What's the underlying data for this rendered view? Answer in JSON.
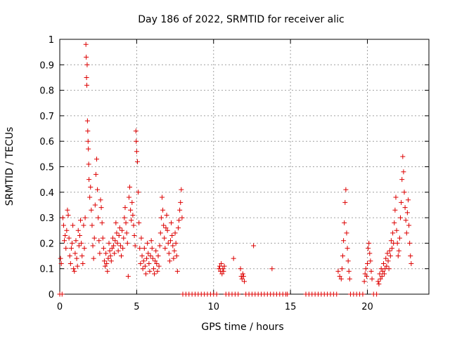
{
  "chart_data": {
    "type": "scatter",
    "title": "Day 186 of 2022, SRMTID for receiver alic",
    "xlabel": "GPS time / hours",
    "ylabel": "SRMTID / TECUs",
    "xlim": [
      0,
      24
    ],
    "ylim": [
      0,
      1
    ],
    "xticks": [
      0,
      5,
      10,
      15,
      20
    ],
    "xtick_labels": [
      "0",
      "5",
      "10",
      "15",
      "20"
    ],
    "yticks": [
      0,
      0.1,
      0.2,
      0.3,
      0.4,
      0.5,
      0.6,
      0.7,
      0.8,
      0.9,
      1
    ],
    "ytick_labels": [
      "0",
      "0.1",
      "0.2",
      "0.3",
      "0.4",
      "0.5",
      "0.6",
      "0.7",
      "0.8",
      "0.9",
      "1"
    ],
    "grid": true,
    "marker": "+",
    "color": "#dd0000",
    "series": [
      {
        "name": "SRMTID",
        "points": [
          [
            0.0,
            0.0
          ],
          [
            0.05,
            0.14
          ],
          [
            0.1,
            0.12
          ],
          [
            0.15,
            0.0
          ],
          [
            0.2,
            0.3
          ],
          [
            0.25,
            0.27
          ],
          [
            0.3,
            0.21
          ],
          [
            0.35,
            0.23
          ],
          [
            0.4,
            0.18
          ],
          [
            0.45,
            0.25
          ],
          [
            0.5,
            0.33
          ],
          [
            0.55,
            0.31
          ],
          [
            0.6,
            0.22
          ],
          [
            0.65,
            0.15
          ],
          [
            0.7,
            0.12
          ],
          [
            0.75,
            0.18
          ],
          [
            0.8,
            0.2
          ],
          [
            0.85,
            0.27
          ],
          [
            0.9,
            0.1
          ],
          [
            0.95,
            0.09
          ],
          [
            1.0,
            0.16
          ],
          [
            1.05,
            0.21
          ],
          [
            1.1,
            0.14
          ],
          [
            1.15,
            0.11
          ],
          [
            1.2,
            0.25
          ],
          [
            1.25,
            0.19
          ],
          [
            1.3,
            0.23
          ],
          [
            1.35,
            0.29
          ],
          [
            1.4,
            0.2
          ],
          [
            1.45,
            0.15
          ],
          [
            1.5,
            0.12
          ],
          [
            1.55,
            0.27
          ],
          [
            1.6,
            0.18
          ],
          [
            1.65,
            0.3
          ],
          [
            1.7,
            0.98
          ],
          [
            1.72,
            0.93
          ],
          [
            1.74,
            0.85
          ],
          [
            1.76,
            0.82
          ],
          [
            1.78,
            0.9
          ],
          [
            1.8,
            0.68
          ],
          [
            1.82,
            0.64
          ],
          [
            1.84,
            0.6
          ],
          [
            1.86,
            0.57
          ],
          [
            1.88,
            0.51
          ],
          [
            1.9,
            0.45
          ],
          [
            1.95,
            0.38
          ],
          [
            2.0,
            0.42
          ],
          [
            2.05,
            0.33
          ],
          [
            2.1,
            0.27
          ],
          [
            2.15,
            0.19
          ],
          [
            2.2,
            0.14
          ],
          [
            2.25,
            0.22
          ],
          [
            2.3,
            0.35
          ],
          [
            2.35,
            0.47
          ],
          [
            2.4,
            0.53
          ],
          [
            2.45,
            0.41
          ],
          [
            2.5,
            0.3
          ],
          [
            2.55,
            0.21
          ],
          [
            2.6,
            0.16
          ],
          [
            2.65,
            0.37
          ],
          [
            2.7,
            0.34
          ],
          [
            2.75,
            0.28
          ],
          [
            2.8,
            0.22
          ],
          [
            2.85,
            0.18
          ],
          [
            2.9,
            0.13
          ],
          [
            2.95,
            0.11
          ],
          [
            3.0,
            0.16
          ],
          [
            3.05,
            0.12
          ],
          [
            3.1,
            0.09
          ],
          [
            3.15,
            0.14
          ],
          [
            3.2,
            0.2
          ],
          [
            3.25,
            0.17
          ],
          [
            3.3,
            0.15
          ],
          [
            3.35,
            0.13
          ],
          [
            3.4,
            0.18
          ],
          [
            3.45,
            0.22
          ],
          [
            3.5,
            0.19
          ],
          [
            3.55,
            0.16
          ],
          [
            3.6,
            0.21
          ],
          [
            3.65,
            0.28
          ],
          [
            3.7,
            0.24
          ],
          [
            3.75,
            0.2
          ],
          [
            3.8,
            0.17
          ],
          [
            3.85,
            0.23
          ],
          [
            3.9,
            0.26
          ],
          [
            3.95,
            0.19
          ],
          [
            4.0,
            0.15
          ],
          [
            4.05,
            0.25
          ],
          [
            4.1,
            0.18
          ],
          [
            4.15,
            0.22
          ],
          [
            4.2,
            0.3
          ],
          [
            4.25,
            0.34
          ],
          [
            4.3,
            0.28
          ],
          [
            4.35,
            0.24
          ],
          [
            4.4,
            0.2
          ],
          [
            4.45,
            0.07
          ],
          [
            4.5,
            0.38
          ],
          [
            4.55,
            0.42
          ],
          [
            4.6,
            0.33
          ],
          [
            4.65,
            0.29
          ],
          [
            4.7,
            0.36
          ],
          [
            4.75,
            0.31
          ],
          [
            4.8,
            0.27
          ],
          [
            4.85,
            0.23
          ],
          [
            4.9,
            0.19
          ],
          [
            4.95,
            0.64
          ],
          [
            4.97,
            0.6
          ],
          [
            5.0,
            0.56
          ],
          [
            5.05,
            0.52
          ],
          [
            5.1,
            0.4
          ],
          [
            5.15,
            0.28
          ],
          [
            5.2,
            0.18
          ],
          [
            5.25,
            0.12
          ],
          [
            5.3,
            0.22
          ],
          [
            5.35,
            0.15
          ],
          [
            5.4,
            0.1
          ],
          [
            5.45,
            0.13
          ],
          [
            5.5,
            0.18
          ],
          [
            5.55,
            0.11
          ],
          [
            5.6,
            0.08
          ],
          [
            5.65,
            0.14
          ],
          [
            5.7,
            0.2
          ],
          [
            5.75,
            0.16
          ],
          [
            5.8,
            0.12
          ],
          [
            5.85,
            0.09
          ],
          [
            5.9,
            0.15
          ],
          [
            5.95,
            0.21
          ],
          [
            6.0,
            0.18
          ],
          [
            6.05,
            0.14
          ],
          [
            6.1,
            0.1
          ],
          [
            6.15,
            0.08
          ],
          [
            6.2,
            0.13
          ],
          [
            6.25,
            0.17
          ],
          [
            6.3,
            0.12
          ],
          [
            6.35,
            0.09
          ],
          [
            6.4,
            0.15
          ],
          [
            6.45,
            0.11
          ],
          [
            6.5,
            0.19
          ],
          [
            6.55,
            0.24
          ],
          [
            6.6,
            0.3
          ],
          [
            6.65,
            0.38
          ],
          [
            6.7,
            0.33
          ],
          [
            6.75,
            0.27
          ],
          [
            6.8,
            0.22
          ],
          [
            6.85,
            0.18
          ],
          [
            6.9,
            0.26
          ],
          [
            6.95,
            0.31
          ],
          [
            7.0,
            0.25
          ],
          [
            7.05,
            0.2
          ],
          [
            7.1,
            0.16
          ],
          [
            7.15,
            0.13
          ],
          [
            7.2,
            0.21
          ],
          [
            7.25,
            0.28
          ],
          [
            7.3,
            0.23
          ],
          [
            7.35,
            0.19
          ],
          [
            7.4,
            0.14
          ],
          [
            7.45,
            0.17
          ],
          [
            7.5,
            0.24
          ],
          [
            7.55,
            0.2
          ],
          [
            7.6,
            0.15
          ],
          [
            7.65,
            0.09
          ],
          [
            7.7,
            0.26
          ],
          [
            7.75,
            0.29
          ],
          [
            7.8,
            0.33
          ],
          [
            7.85,
            0.36
          ],
          [
            7.9,
            0.41
          ],
          [
            7.95,
            0.3
          ],
          [
            8.0,
            0.0
          ],
          [
            8.2,
            0.0
          ],
          [
            8.4,
            0.0
          ],
          [
            8.6,
            0.0
          ],
          [
            8.8,
            0.0
          ],
          [
            9.0,
            0.0
          ],
          [
            9.2,
            0.0
          ],
          [
            9.4,
            0.0
          ],
          [
            9.6,
            0.0
          ],
          [
            9.8,
            0.0
          ],
          [
            10.0,
            0.0
          ],
          [
            10.2,
            0.0
          ],
          [
            10.35,
            0.1
          ],
          [
            10.4,
            0.11
          ],
          [
            10.45,
            0.09
          ],
          [
            10.5,
            0.12
          ],
          [
            10.55,
            0.08
          ],
          [
            10.6,
            0.1
          ],
          [
            10.65,
            0.09
          ],
          [
            10.7,
            0.11
          ],
          [
            10.8,
            0.0
          ],
          [
            11.0,
            0.0
          ],
          [
            11.2,
            0.0
          ],
          [
            11.3,
            0.14
          ],
          [
            11.4,
            0.0
          ],
          [
            11.6,
            0.0
          ],
          [
            11.75,
            0.1
          ],
          [
            11.8,
            0.07
          ],
          [
            11.85,
            0.06
          ],
          [
            11.9,
            0.08
          ],
          [
            11.95,
            0.07
          ],
          [
            12.0,
            0.05
          ],
          [
            12.1,
            0.0
          ],
          [
            12.3,
            0.0
          ],
          [
            12.5,
            0.0
          ],
          [
            12.6,
            0.19
          ],
          [
            12.7,
            0.0
          ],
          [
            12.9,
            0.0
          ],
          [
            13.1,
            0.0
          ],
          [
            13.3,
            0.0
          ],
          [
            13.5,
            0.0
          ],
          [
            13.7,
            0.0
          ],
          [
            13.8,
            0.1
          ],
          [
            13.9,
            0.0
          ],
          [
            14.1,
            0.0
          ],
          [
            14.3,
            0.0
          ],
          [
            14.5,
            0.0
          ],
          [
            14.7,
            0.0
          ],
          [
            14.8,
            0.0
          ],
          [
            16.0,
            0.0
          ],
          [
            16.2,
            0.0
          ],
          [
            16.4,
            0.0
          ],
          [
            16.6,
            0.0
          ],
          [
            16.8,
            0.0
          ],
          [
            17.0,
            0.0
          ],
          [
            17.2,
            0.0
          ],
          [
            17.4,
            0.0
          ],
          [
            17.6,
            0.0
          ],
          [
            17.8,
            0.0
          ],
          [
            18.0,
            0.0
          ],
          [
            18.1,
            0.09
          ],
          [
            18.2,
            0.07
          ],
          [
            18.3,
            0.06
          ],
          [
            18.35,
            0.1
          ],
          [
            18.4,
            0.15
          ],
          [
            18.45,
            0.21
          ],
          [
            18.5,
            0.28
          ],
          [
            18.55,
            0.36
          ],
          [
            18.6,
            0.41
          ],
          [
            18.65,
            0.24
          ],
          [
            18.7,
            0.18
          ],
          [
            18.75,
            0.13
          ],
          [
            18.8,
            0.09
          ],
          [
            18.85,
            0.06
          ],
          [
            18.9,
            0.0
          ],
          [
            19.1,
            0.0
          ],
          [
            19.3,
            0.0
          ],
          [
            19.5,
            0.0
          ],
          [
            19.7,
            0.0
          ],
          [
            19.8,
            0.05
          ],
          [
            19.85,
            0.08
          ],
          [
            19.9,
            0.1
          ],
          [
            19.95,
            0.07
          ],
          [
            20.0,
            0.12
          ],
          [
            20.05,
            0.18
          ],
          [
            20.1,
            0.2
          ],
          [
            20.15,
            0.16
          ],
          [
            20.2,
            0.13
          ],
          [
            20.25,
            0.09
          ],
          [
            20.3,
            0.06
          ],
          [
            20.4,
            0.0
          ],
          [
            20.6,
            0.0
          ],
          [
            20.7,
            0.05
          ],
          [
            20.75,
            0.04
          ],
          [
            20.8,
            0.08
          ],
          [
            20.85,
            0.06
          ],
          [
            20.9,
            0.1
          ],
          [
            20.95,
            0.07
          ],
          [
            21.0,
            0.09
          ],
          [
            21.05,
            0.12
          ],
          [
            21.1,
            0.08
          ],
          [
            21.15,
            0.1
          ],
          [
            21.2,
            0.14
          ],
          [
            21.25,
            0.11
          ],
          [
            21.3,
            0.16
          ],
          [
            21.35,
            0.13
          ],
          [
            21.4,
            0.1
          ],
          [
            21.45,
            0.17
          ],
          [
            21.5,
            0.15
          ],
          [
            21.55,
            0.21
          ],
          [
            21.6,
            0.18
          ],
          [
            21.65,
            0.24
          ],
          [
            21.7,
            0.2
          ],
          [
            21.75,
            0.28
          ],
          [
            21.8,
            0.33
          ],
          [
            21.85,
            0.38
          ],
          [
            21.9,
            0.25
          ],
          [
            21.95,
            0.2
          ],
          [
            22.0,
            0.15
          ],
          [
            22.05,
            0.17
          ],
          [
            22.1,
            0.22
          ],
          [
            22.15,
            0.3
          ],
          [
            22.2,
            0.36
          ],
          [
            22.25,
            0.45
          ],
          [
            22.3,
            0.54
          ],
          [
            22.35,
            0.48
          ],
          [
            22.4,
            0.4
          ],
          [
            22.45,
            0.34
          ],
          [
            22.5,
            0.29
          ],
          [
            22.55,
            0.24
          ],
          [
            22.6,
            0.32
          ],
          [
            22.65,
            0.37
          ],
          [
            22.7,
            0.27
          ],
          [
            22.75,
            0.2
          ],
          [
            22.8,
            0.15
          ],
          [
            22.85,
            0.12
          ]
        ]
      }
    ]
  }
}
